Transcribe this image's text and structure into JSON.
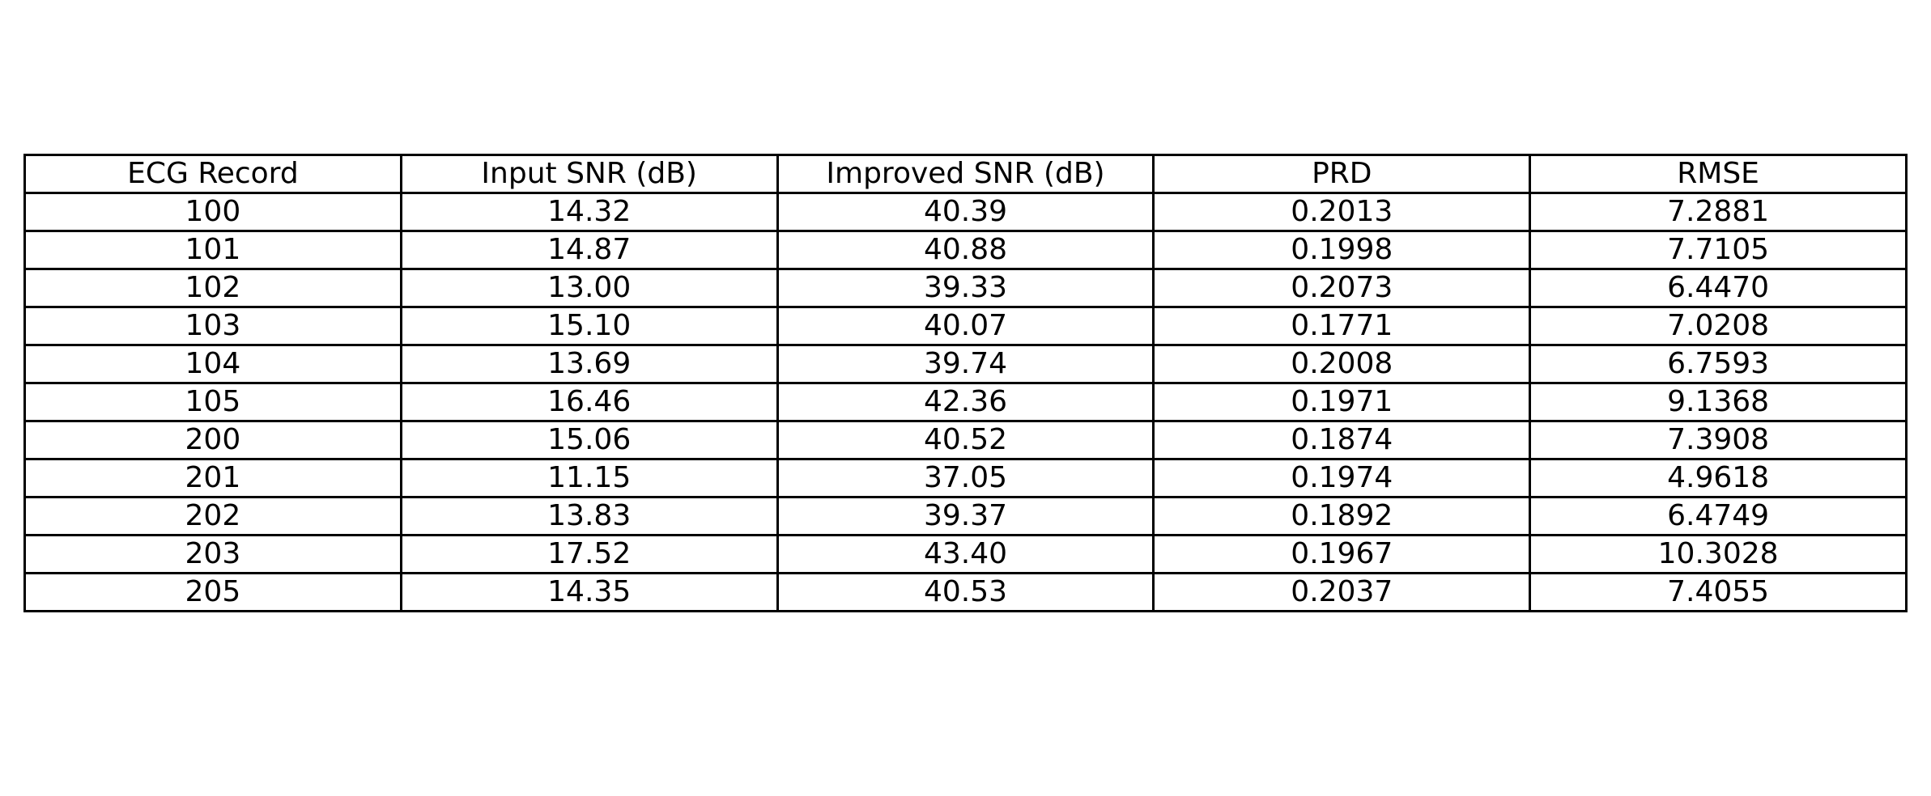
{
  "chart_data": {
    "type": "table",
    "columns": [
      "ECG Record",
      "Input SNR (dB)",
      "Improved SNR (dB)",
      "PRD",
      "RMSE"
    ],
    "rows": [
      [
        "100",
        "14.32",
        "40.39",
        "0.2013",
        "7.2881"
      ],
      [
        "101",
        "14.87",
        "40.88",
        "0.1998",
        "7.7105"
      ],
      [
        "102",
        "13.00",
        "39.33",
        "0.2073",
        "6.4470"
      ],
      [
        "103",
        "15.10",
        "40.07",
        "0.1771",
        "7.0208"
      ],
      [
        "104",
        "13.69",
        "39.74",
        "0.2008",
        "6.7593"
      ],
      [
        "105",
        "16.46",
        "42.36",
        "0.1971",
        "9.1368"
      ],
      [
        "200",
        "15.06",
        "40.52",
        "0.1874",
        "7.3908"
      ],
      [
        "201",
        "11.15",
        "37.05",
        "0.1974",
        "4.9618"
      ],
      [
        "202",
        "13.83",
        "39.37",
        "0.1892",
        "6.4749"
      ],
      [
        "203",
        "17.52",
        "43.40",
        "0.1967",
        "10.3028"
      ],
      [
        "205",
        "14.35",
        "40.53",
        "0.2037",
        "7.4055"
      ]
    ]
  }
}
